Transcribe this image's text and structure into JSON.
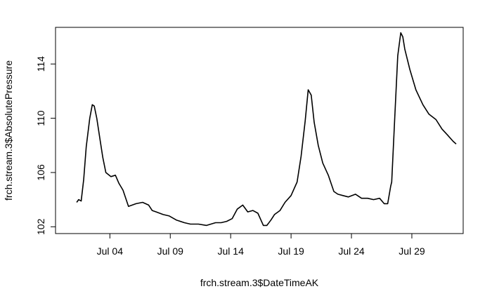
{
  "chart_data": {
    "type": "line",
    "xlabel": "frch.stream.3$DateTimeAK",
    "ylabel": "frch.stream.3$AbsolutePressure",
    "x_unit": "date",
    "xlim": [
      "2023-06-29T12:00",
      "2023-08-02T06:00"
    ],
    "ylim": [
      101.5,
      116.7
    ],
    "x_ticks": [
      {
        "label": "Jul 04",
        "value": "2023-07-04"
      },
      {
        "label": "Jul 09",
        "value": "2023-07-09"
      },
      {
        "label": "Jul 14",
        "value": "2023-07-14"
      },
      {
        "label": "Jul 19",
        "value": "2023-07-19"
      },
      {
        "label": "Jul 24",
        "value": "2023-07-24"
      },
      {
        "label": "Jul 29",
        "value": "2023-07-29"
      }
    ],
    "y_ticks": [
      {
        "label": "102",
        "value": 102
      },
      {
        "label": "106",
        "value": 106
      },
      {
        "label": "110",
        "value": 110
      },
      {
        "label": "114",
        "value": 114
      }
    ],
    "grid": false,
    "line_color": "#000000",
    "series": [
      {
        "x": [
          "2023-07-01T06:00",
          "2023-07-01T10:00",
          "2023-07-01T15:00",
          "2023-07-01T20:00",
          "2023-07-02T01:00",
          "2023-07-02T08:00",
          "2023-07-02T13:00",
          "2023-07-02T17:00",
          "2023-07-02T22:00",
          "2023-07-03T05:00",
          "2023-07-03T10:00",
          "2023-07-03T16:00",
          "2023-07-04T02:00",
          "2023-07-04T11:00",
          "2023-07-04T18:00",
          "2023-07-05T02:00",
          "2023-07-05T13:00",
          "2023-07-06T04:00",
          "2023-07-06T17:00",
          "2023-07-07T05:00",
          "2023-07-07T12:00",
          "2023-07-07T20:00",
          "2023-07-08T10:00",
          "2023-07-08T22:00",
          "2023-07-09T12:00",
          "2023-07-10T04:00",
          "2023-07-10T16:00",
          "2023-07-11T08:00",
          "2023-07-12T00:00",
          "2023-07-12T18:00",
          "2023-07-13T05:00",
          "2023-07-13T16:00",
          "2023-07-14T03:00",
          "2023-07-14T13:00",
          "2023-07-15T00:00",
          "2023-07-15T10:00",
          "2023-07-15T20:00",
          "2023-07-16T06:00",
          "2023-07-16T17:00",
          "2023-07-17T00:00",
          "2023-07-17T08:00",
          "2023-07-17T15:00",
          "2023-07-18T02:00",
          "2023-07-18T12:00",
          "2023-07-19T00:00",
          "2023-07-19T12:00",
          "2023-07-19T20:00",
          "2023-07-20T04:00",
          "2023-07-20T10:00",
          "2023-07-20T16:00",
          "2023-07-20T22:00",
          "2023-07-21T06:00",
          "2023-07-21T15:00",
          "2023-07-22T02:00",
          "2023-07-22T13:00",
          "2023-07-22T21:00",
          "2023-07-23T07:00",
          "2023-07-23T18:00",
          "2023-07-24T08:00",
          "2023-07-24T20:00",
          "2023-07-25T08:00",
          "2023-07-25T20:00",
          "2023-07-26T08:00",
          "2023-07-26T17:00",
          "2023-07-27T00:00",
          "2023-07-27T06:00",
          "2023-07-27T08:00",
          "2023-07-27T14:00",
          "2023-07-27T20:00",
          "2023-07-28T02:00",
          "2023-07-28T06:00",
          "2023-07-28T10:00",
          "2023-07-28T20:00",
          "2023-07-29T08:00",
          "2023-07-29T22:00",
          "2023-07-30T10:00",
          "2023-07-31T00:00",
          "2023-07-31T12:00",
          "2023-07-31T22:00",
          "2023-08-01T10:00",
          "2023-08-01T16:00"
        ],
        "y": [
          103.8,
          104.0,
          103.9,
          105.5,
          107.9,
          110.0,
          111.0,
          110.9,
          110.0,
          108.3,
          107.1,
          106.0,
          105.7,
          105.8,
          105.2,
          104.7,
          103.5,
          103.7,
          103.8,
          103.6,
          103.2,
          103.1,
          102.9,
          102.8,
          102.5,
          102.3,
          102.2,
          102.2,
          102.1,
          102.3,
          102.3,
          102.4,
          102.6,
          103.3,
          103.6,
          103.1,
          103.2,
          103.0,
          102.1,
          102.1,
          102.5,
          102.9,
          103.2,
          103.8,
          104.3,
          105.3,
          107.2,
          109.8,
          112.1,
          111.7,
          109.7,
          108.0,
          106.7,
          105.8,
          104.6,
          104.4,
          104.3,
          104.2,
          104.4,
          104.1,
          104.1,
          104.0,
          104.1,
          103.7,
          103.7,
          105.0,
          105.3,
          110.0,
          114.6,
          116.3,
          116.0,
          115.1,
          113.6,
          112.1,
          111.0,
          110.3,
          109.9,
          109.2,
          108.8,
          108.3,
          108.1
        ]
      }
    ]
  }
}
